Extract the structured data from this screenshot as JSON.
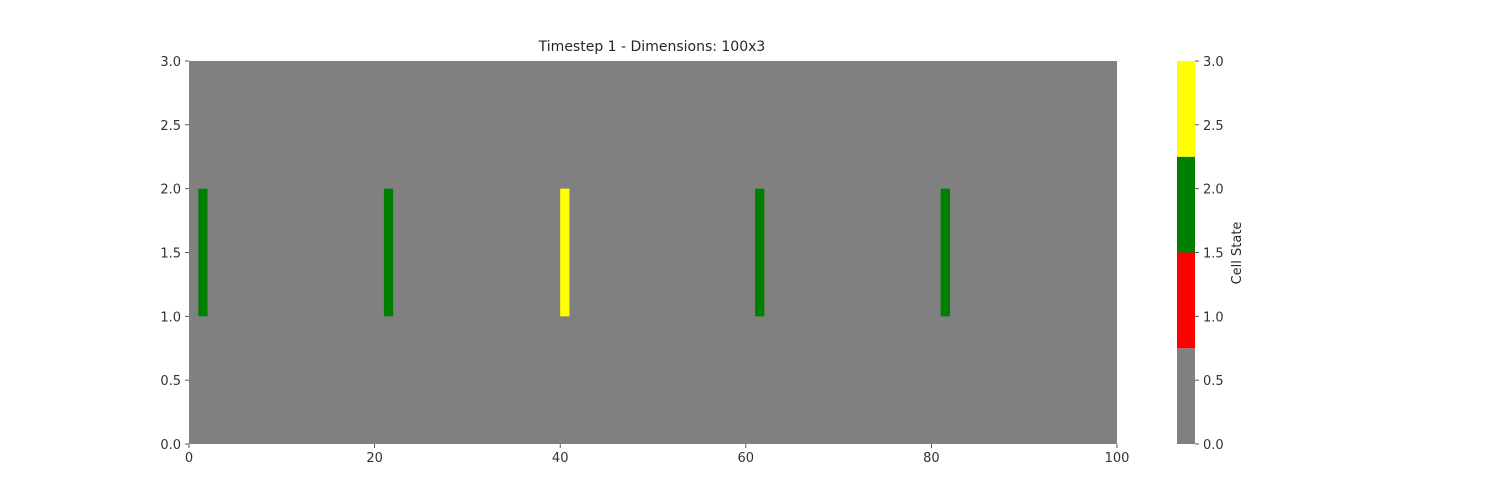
{
  "chart_data": {
    "type": "heatmap",
    "title": "Timestep 1 - Dimensions: 100x3",
    "xlabel": "",
    "ylabel": "",
    "xlim": [
      0,
      100
    ],
    "ylim": [
      0,
      3
    ],
    "x_ticks": [
      0,
      20,
      40,
      60,
      80,
      100
    ],
    "x_tick_labels": [
      "0",
      "20",
      "40",
      "60",
      "80",
      "100"
    ],
    "y_ticks": [
      0.0,
      0.5,
      1.0,
      1.5,
      2.0,
      2.5,
      3.0
    ],
    "y_tick_labels": [
      "0.0",
      "0.5",
      "1.0",
      "1.5",
      "2.0",
      "2.5",
      "3.0"
    ],
    "grid": false,
    "background_state": 0,
    "cells": [
      {
        "x": 1,
        "y": 1,
        "state": 2
      },
      {
        "x": 21,
        "y": 1,
        "state": 2
      },
      {
        "x": 40,
        "y": 1,
        "state": 3
      },
      {
        "x": 61,
        "y": 1,
        "state": 2
      },
      {
        "x": 81,
        "y": 1,
        "state": 2
      }
    ],
    "colorbar": {
      "label": "Cell State",
      "range": [
        0,
        3
      ],
      "colors": [
        "#808080",
        "#ff0000",
        "#008000",
        "#ffff00"
      ],
      "ticks": [
        0.0,
        0.5,
        1.0,
        1.5,
        2.0,
        2.5,
        3.0
      ],
      "tick_labels": [
        "0.0",
        "0.5",
        "1.0",
        "1.5",
        "2.0",
        "2.5",
        "3.0"
      ]
    }
  }
}
